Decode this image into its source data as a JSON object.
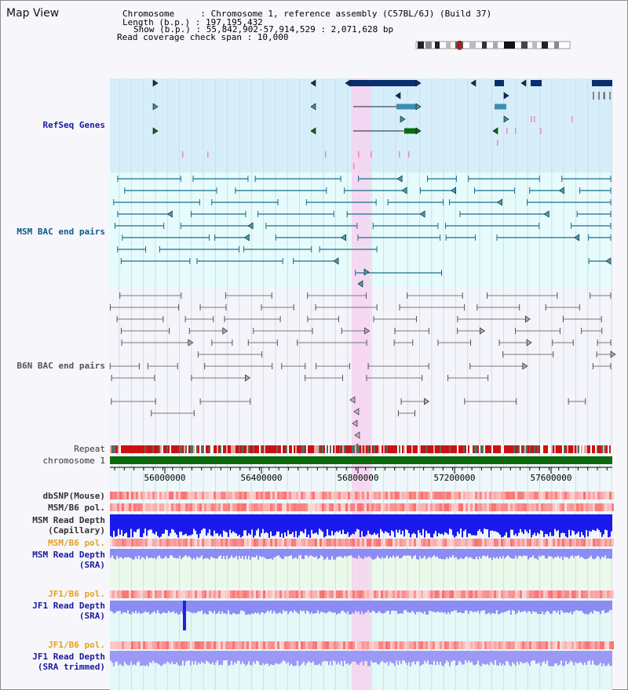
{
  "page": {
    "title": "Map View"
  },
  "header": {
    "chromosome": "Chromosome     : Chromosome 1, reference assembly (C57BL/6J) (Build 37)",
    "length": "Length (b.p.) : 197,195,432",
    "show": "Show (b.p.) : 55,842,902-57,914,529 : 2,071,628 bp",
    "coverage": "Read coverage check span : 10,000"
  },
  "tracks": {
    "refseq": "RefSeq Genes",
    "msm_bac": "MSM BAC end pairs",
    "b6n_bac": "B6N BAC end pairs",
    "repeat": "Repeat",
    "chromosome": "chromosome 1",
    "dbsnp": "dbSNP(Mouse)",
    "msm_pol1": "MSM/B6 pol.",
    "msm_depth_cap_1": "MSM Read Depth",
    "msm_depth_cap_2": "(Capillary)",
    "msm_pol2": "MSM/B6 pol.",
    "msm_depth_sra_1": "MSM Read Depth",
    "msm_depth_sra_2": "(SRA)",
    "jf1_pol1": "JF1/B6 pol.",
    "jf1_depth_sra_1": "JF1 Read Depth",
    "jf1_depth_sra_2": "(SRA)",
    "jf1_pol2": "JF1/B6 pol.",
    "jf1_depth_trim_1": "JF1 Read Depth",
    "jf1_depth_trim_2": "(SRA trimmed)"
  },
  "ruler": {
    "ticks": [
      "56000000",
      "56400000",
      "56800000",
      "57200000",
      "57600000"
    ]
  },
  "colors": {
    "refseq_bg": "#d6eefa",
    "bac_bg": "#e6fbfb",
    "highlight": "#f6d2f0",
    "chromosome_bar": "#0b6a0b",
    "gene_navy": "#0a2f6e",
    "gene_teal": "#3a8fb0",
    "gene_green": "#0c6a0c",
    "msm_line": "#1b6e8c",
    "b6n_line": "#777777",
    "depth_capillary": "#1a1aee",
    "depth_sra": "#8c8cf4"
  }
}
